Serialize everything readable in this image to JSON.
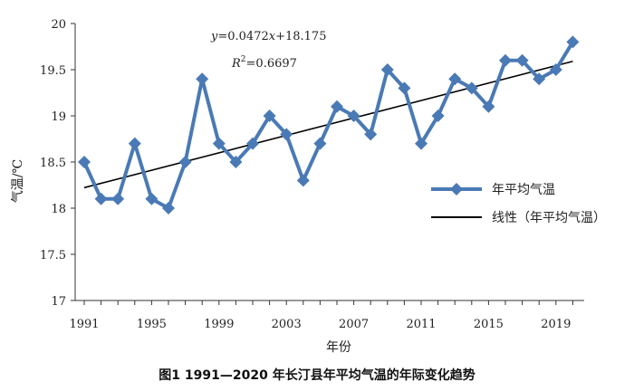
{
  "caption": "图1  1991—2020 年长汀县年平均气温的年际变化趋势",
  "chart_data": {
    "type": "line",
    "xlabel": "年份",
    "ylabel": "气温/℃",
    "ylim": [
      17,
      20
    ],
    "yticks": [
      "17",
      "17.5",
      "18",
      "18.5",
      "19",
      "19.5",
      "20"
    ],
    "xtick_labels": [
      "1991",
      "1995",
      "1999",
      "2003",
      "2007",
      "2011",
      "2015",
      "2019"
    ],
    "x": [
      1991,
      1992,
      1993,
      1994,
      1995,
      1996,
      1997,
      1998,
      1999,
      2000,
      2001,
      2002,
      2003,
      2004,
      2005,
      2006,
      2007,
      2008,
      2009,
      2010,
      2011,
      2012,
      2013,
      2014,
      2015,
      2016,
      2017,
      2018,
      2019,
      2020
    ],
    "series": [
      {
        "name": "年平均气温",
        "color": "#4a7ab5",
        "marker": "diamond",
        "values": [
          18.5,
          18.1,
          18.1,
          18.7,
          18.1,
          18.0,
          18.5,
          19.4,
          18.7,
          18.5,
          18.7,
          19.0,
          18.8,
          18.3,
          18.7,
          19.1,
          19.0,
          18.8,
          19.5,
          19.3,
          18.7,
          19.0,
          19.4,
          19.3,
          19.1,
          19.6,
          19.6,
          19.4,
          19.5,
          19.8
        ]
      }
    ],
    "trendline": {
      "name": "线性（年平均气温）",
      "color": "#000000",
      "slope": 0.0472,
      "intercept": 18.175,
      "equation": "y=0.0472x+18.175",
      "r2_text": "R2=0.6697",
      "r2_value": "0.6697"
    },
    "grid": false,
    "legend_position": "right"
  }
}
